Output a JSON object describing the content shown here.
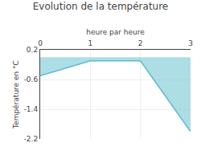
{
  "chart_data": {
    "type": "area",
    "title": "Evolution de la température",
    "xlabel": "heure par heure",
    "ylabel": "Température en °C",
    "x": [
      0,
      1,
      2,
      3
    ],
    "values": [
      -0.5,
      -0.1,
      -0.1,
      -2.0
    ],
    "color": "#5bbccc",
    "xlim": [
      0,
      3
    ],
    "xticks": [
      0,
      1,
      2,
      3
    ],
    "ylim": [
      -2.2,
      0.2
    ],
    "yticks": [
      0.2,
      -0.6,
      -1.4,
      -2.2
    ],
    "grid": true
  }
}
